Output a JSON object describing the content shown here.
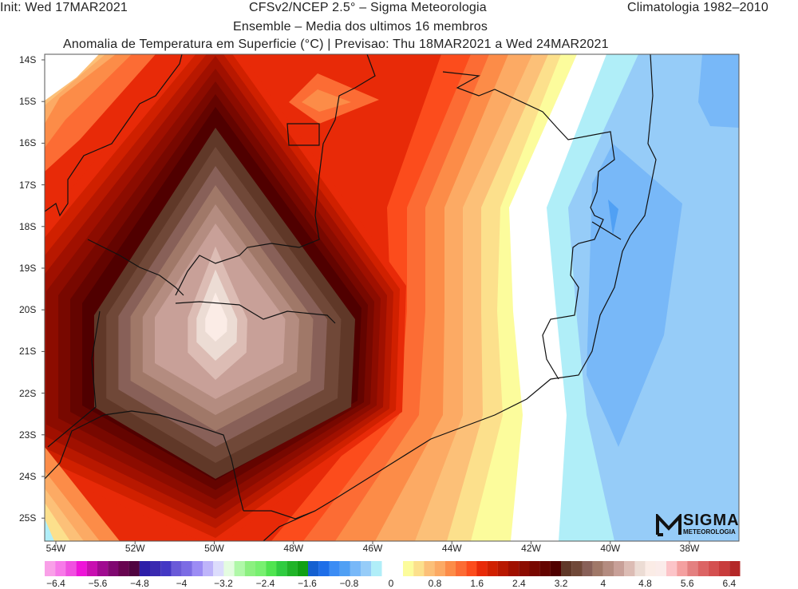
{
  "header": {
    "init": "Init: Wed 17MAR2021",
    "source": "CFSv2/NCEP 2.5° – Sigma Meteorologia",
    "climatology": "Climatologia 1982–2010",
    "subtitle": "Ensemble – Media dos ultimos 16 membros",
    "title": "Anomalia de Temperatura em Superficie (°C) | Previsao: Thu 18MAR2021 a Wed 24MAR2021"
  },
  "axes": {
    "lat_labels": [
      "14S",
      "15S",
      "16S",
      "17S",
      "18S",
      "19S",
      "20S",
      "21S",
      "22S",
      "23S",
      "24S",
      "25S"
    ],
    "lon_labels": [
      "54W",
      "52W",
      "50W",
      "48W",
      "46W",
      "44W",
      "42W",
      "40W",
      "38W"
    ]
  },
  "colorbar": {
    "negative_colors": [
      "#f9a0e8",
      "#f77ae8",
      "#f050e0",
      "#ee14d8",
      "#c80fb0",
      "#a00a90",
      "#800870",
      "#680550",
      "#500440",
      "#2d1ea8",
      "#3a2ab0",
      "#4438c4",
      "#6a5ad8",
      "#7c6ce4",
      "#9c8cf4",
      "#beb4fa",
      "#dcdcfc",
      "#e4fce0",
      "#b0f8a8",
      "#8cf080",
      "#78f070",
      "#50e450",
      "#30cc40",
      "#20b428",
      "#10a014",
      "#1460d0",
      "#1e6ee8",
      "#3c8cf4",
      "#50a0f4",
      "#78b8f8",
      "#96ccf8",
      "#b0eef8"
    ],
    "positive_colors": [
      "#fcfc9c",
      "#fce08c",
      "#fcc078",
      "#fcaa64",
      "#fc8c48",
      "#fc6c34",
      "#fc4c1c",
      "#e82a08",
      "#d02000",
      "#b81800",
      "#a01000",
      "#8c0c00",
      "#780800",
      "#640400",
      "#500000",
      "#603828",
      "#704838",
      "#886058",
      "#a07868",
      "#b48c80",
      "#c8a098",
      "#dcbcb4",
      "#ecdcd4",
      "#fbece6",
      "#fbecea",
      "#fcc4c8",
      "#f4a0a0",
      "#e48080",
      "#dc6464",
      "#d45050",
      "#c83c3c",
      "#b42828"
    ],
    "negative_labels": [
      "−6.4",
      "−5.6",
      "−4.8",
      "−4",
      "−3.2",
      "−2.4",
      "−1.6",
      "−0.8",
      "0"
    ],
    "positive_labels": [
      "0.8",
      "1.6",
      "2.4",
      "3.2",
      "4",
      "4.8",
      "5.6",
      "6.4"
    ]
  },
  "logo": {
    "name": "SIGMA",
    "tagline": "METEOROLOGIA"
  }
}
